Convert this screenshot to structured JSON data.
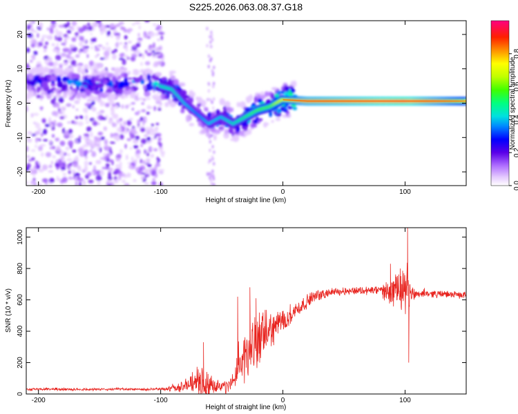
{
  "title": "S225.2026.063.08.37.G18",
  "chart_data": [
    {
      "type": "heatmap",
      "name": "spectrogram",
      "xlabel": "Height of straight line (km)",
      "ylabel": "Frequency (Hz)",
      "xlim": [
        -210,
        150
      ],
      "ylim": [
        -24,
        24
      ],
      "xticks": [
        -200,
        -100,
        0,
        100
      ],
      "yticks": [
        -20,
        -10,
        0,
        10,
        20
      ],
      "colorbar": {
        "label": "Normalized spectral amplitude",
        "range": [
          0,
          1
        ],
        "ticks": [
          "0.0",
          "0.2",
          "0.4",
          "0.6",
          "0.8"
        ],
        "tick_values": [
          0.0,
          0.2,
          0.4,
          0.6,
          0.8
        ]
      },
      "ridge": {
        "description_points_x_km": [
          -210,
          -180,
          -150,
          -120,
          -100,
          -90,
          -80,
          -70,
          -60,
          -50,
          -40,
          -30,
          -20,
          -10,
          0,
          20,
          60,
          100,
          150
        ],
        "frequency_hz": [
          6,
          6,
          5,
          6,
          5,
          4,
          0,
          -3,
          -6,
          -4,
          -6,
          -4,
          -2,
          -1,
          1,
          0.6,
          0.6,
          0.6,
          0.6
        ],
        "peak_amplitude": [
          0.3,
          0.35,
          0.35,
          0.35,
          0.45,
          0.45,
          0.4,
          0.35,
          0.4,
          0.4,
          0.45,
          0.5,
          0.55,
          0.55,
          0.7,
          0.85,
          0.9,
          0.95,
          0.7
        ]
      }
    },
    {
      "type": "line",
      "name": "snr",
      "xlabel": "Height of straight line (km)",
      "ylabel": "SNR (10 * v/v)",
      "xlim": [
        -210,
        150
      ],
      "ylim": [
        0,
        1060
      ],
      "xticks": [
        -200,
        -100,
        0,
        100
      ],
      "yticks": [
        0,
        200,
        400,
        600,
        800,
        1000
      ],
      "color": "#e8231e",
      "trend_x": [
        -210,
        -100,
        -80,
        -70,
        -60,
        -45,
        -35,
        -25,
        -15,
        -5,
        5,
        15,
        25,
        40,
        60,
        80,
        95,
        105,
        120,
        150
      ],
      "trend_y": [
        30,
        30,
        50,
        80,
        60,
        40,
        180,
        300,
        380,
        440,
        500,
        560,
        620,
        650,
        660,
        660,
        650,
        640,
        640,
        630
      ],
      "noise_x": [
        -210,
        -100,
        -80,
        -65,
        -50,
        -40,
        -30,
        -20,
        -10,
        0,
        10,
        20,
        40,
        60,
        80,
        90,
        100,
        105,
        110,
        150
      ],
      "noise_amp": [
        10,
        10,
        50,
        130,
        40,
        80,
        200,
        200,
        140,
        90,
        70,
        50,
        30,
        30,
        40,
        120,
        180,
        80,
        30,
        25
      ],
      "spikes": [
        [
          -65,
          330
        ],
        [
          -37,
          620
        ],
        [
          -27,
          680
        ],
        [
          -22,
          610
        ],
        [
          88,
          830
        ],
        [
          96,
          800
        ],
        [
          102,
          1060
        ],
        [
          103,
          200
        ]
      ]
    }
  ]
}
